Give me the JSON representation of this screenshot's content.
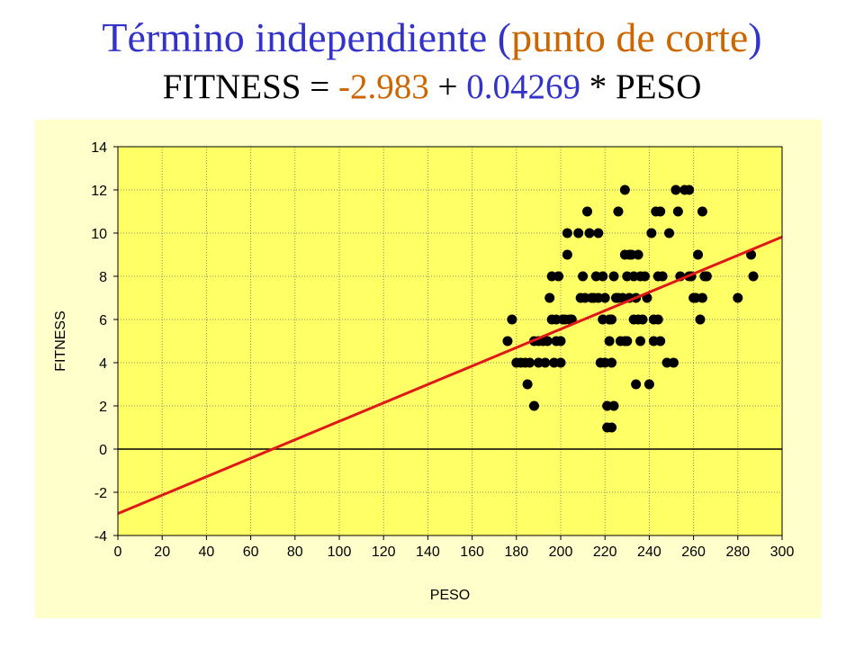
{
  "title": {
    "part1": "Término independiente (",
    "highlight": "punto de corte",
    "part2": ")"
  },
  "equation": {
    "prefix": "FITNESS = ",
    "intercept": "-2.983",
    "plus": " + ",
    "slope": "0.04269",
    "suffix": " * PESO"
  },
  "colors": {
    "background": "#ffffcc",
    "plot_area": "#ffff66",
    "points": "#000000",
    "regression_line": "#e01818",
    "title_blue": "#3333cc",
    "title_orange": "#cc6600"
  },
  "chart_data": {
    "type": "scatter",
    "xlabel": "PESO",
    "ylabel": "FITNESS",
    "xlim": [
      0,
      300
    ],
    "ylim": [
      -4,
      14
    ],
    "xticks": [
      0,
      20,
      40,
      60,
      80,
      100,
      120,
      140,
      160,
      180,
      200,
      220,
      240,
      260,
      280,
      300
    ],
    "yticks": [
      -4,
      -2,
      0,
      2,
      4,
      6,
      8,
      10,
      12,
      14
    ],
    "grid": true,
    "regression": {
      "intercept": -2.983,
      "slope": 0.04269
    },
    "points": [
      [
        176,
        5
      ],
      [
        178,
        6
      ],
      [
        180,
        4
      ],
      [
        182,
        4
      ],
      [
        184,
        4
      ],
      [
        185,
        3
      ],
      [
        186,
        4
      ],
      [
        188,
        2
      ],
      [
        188,
        5
      ],
      [
        190,
        5
      ],
      [
        190,
        4
      ],
      [
        192,
        5
      ],
      [
        193,
        4
      ],
      [
        194,
        5
      ],
      [
        195,
        7
      ],
      [
        196,
        6
      ],
      [
        196,
        8
      ],
      [
        197,
        4
      ],
      [
        198,
        5
      ],
      [
        198,
        6
      ],
      [
        199,
        8
      ],
      [
        200,
        5
      ],
      [
        200,
        4
      ],
      [
        201,
        6
      ],
      [
        202,
        6
      ],
      [
        203,
        9
      ],
      [
        203,
        10
      ],
      [
        204,
        6
      ],
      [
        205,
        6
      ],
      [
        208,
        10
      ],
      [
        209,
        7
      ],
      [
        210,
        8
      ],
      [
        211,
        7
      ],
      [
        212,
        11
      ],
      [
        213,
        10
      ],
      [
        214,
        7
      ],
      [
        215,
        7
      ],
      [
        216,
        8
      ],
      [
        217,
        7
      ],
      [
        217,
        10
      ],
      [
        218,
        4
      ],
      [
        219,
        6
      ],
      [
        219,
        8
      ],
      [
        220,
        7
      ],
      [
        220,
        4
      ],
      [
        221,
        2
      ],
      [
        221,
        1
      ],
      [
        222,
        6
      ],
      [
        222,
        5
      ],
      [
        223,
        1
      ],
      [
        223,
        6
      ],
      [
        223,
        4
      ],
      [
        224,
        2
      ],
      [
        224,
        8
      ],
      [
        225,
        7
      ],
      [
        226,
        7
      ],
      [
        226,
        11
      ],
      [
        227,
        5
      ],
      [
        228,
        7
      ],
      [
        229,
        12
      ],
      [
        229,
        5
      ],
      [
        229,
        9
      ],
      [
        230,
        5
      ],
      [
        230,
        8
      ],
      [
        231,
        9
      ],
      [
        231,
        7
      ],
      [
        232,
        9
      ],
      [
        233,
        8
      ],
      [
        233,
        6
      ],
      [
        234,
        3
      ],
      [
        234,
        7
      ],
      [
        235,
        6
      ],
      [
        235,
        9
      ],
      [
        236,
        5
      ],
      [
        236,
        8
      ],
      [
        237,
        6
      ],
      [
        238,
        8
      ],
      [
        239,
        7
      ],
      [
        240,
        3
      ],
      [
        241,
        10
      ],
      [
        242,
        5
      ],
      [
        242,
        6
      ],
      [
        243,
        11
      ],
      [
        244,
        6
      ],
      [
        244,
        8
      ],
      [
        245,
        11
      ],
      [
        245,
        5
      ],
      [
        246,
        8
      ],
      [
        248,
        4
      ],
      [
        249,
        10
      ],
      [
        251,
        4
      ],
      [
        252,
        12
      ],
      [
        253,
        11
      ],
      [
        254,
        8
      ],
      [
        256,
        12
      ],
      [
        258,
        12
      ],
      [
        258,
        8
      ],
      [
        259,
        8
      ],
      [
        260,
        7
      ],
      [
        261,
        7
      ],
      [
        262,
        9
      ],
      [
        263,
        6
      ],
      [
        264,
        7
      ],
      [
        264,
        11
      ],
      [
        265,
        8
      ],
      [
        266,
        8
      ],
      [
        280,
        7
      ],
      [
        286,
        9
      ],
      [
        287,
        8
      ]
    ]
  }
}
